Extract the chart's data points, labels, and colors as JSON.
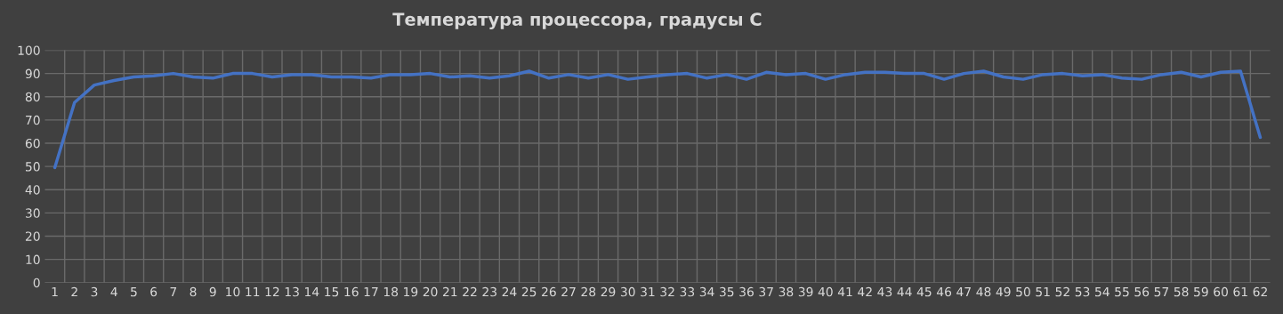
{
  "chart_data": {
    "type": "line",
    "title": "Температура процессора, градусы С",
    "categories": [
      "1",
      "2",
      "3",
      "4",
      "5",
      "6",
      "7",
      "8",
      "9",
      "10",
      "11",
      "12",
      "13",
      "14",
      "15",
      "16",
      "17",
      "18",
      "19",
      "20",
      "21",
      "22",
      "23",
      "24",
      "25",
      "26",
      "27",
      "28",
      "29",
      "30",
      "31",
      "32",
      "33",
      "34",
      "35",
      "36",
      "37",
      "38",
      "39",
      "40",
      "41",
      "42",
      "43",
      "44",
      "45",
      "46",
      "47",
      "48",
      "49",
      "50",
      "51",
      "52",
      "53",
      "54",
      "55",
      "56",
      "57",
      "58",
      "59",
      "60",
      "61",
      "62"
    ],
    "series": [
      {
        "color": "#4472c4",
        "values": [
          49.5,
          77.5,
          85,
          87,
          88.5,
          89,
          90,
          88.5,
          88,
          90,
          90,
          88.5,
          89.5,
          89.5,
          88.5,
          88.5,
          88,
          89.5,
          89.5,
          90,
          88.5,
          89,
          88,
          89,
          91,
          88,
          89.5,
          88,
          89.5,
          87.5,
          88.5,
          89.5,
          90,
          88,
          89.5,
          87.5,
          90.5,
          89.5,
          90,
          87.5,
          89.5,
          90.5,
          90.5,
          90,
          90,
          87.5,
          90,
          91,
          88.5,
          87.5,
          89.5,
          90,
          89,
          89.5,
          88,
          87.5,
          89.5,
          90.5,
          88.5,
          90.5,
          91,
          62.5
        ]
      }
    ],
    "ylim": [
      0,
      100
    ],
    "yticks": [
      0,
      10,
      20,
      30,
      40,
      50,
      60,
      70,
      80,
      90,
      100
    ],
    "grid": true,
    "legend": false,
    "marker": "none",
    "line_style": "solid"
  }
}
